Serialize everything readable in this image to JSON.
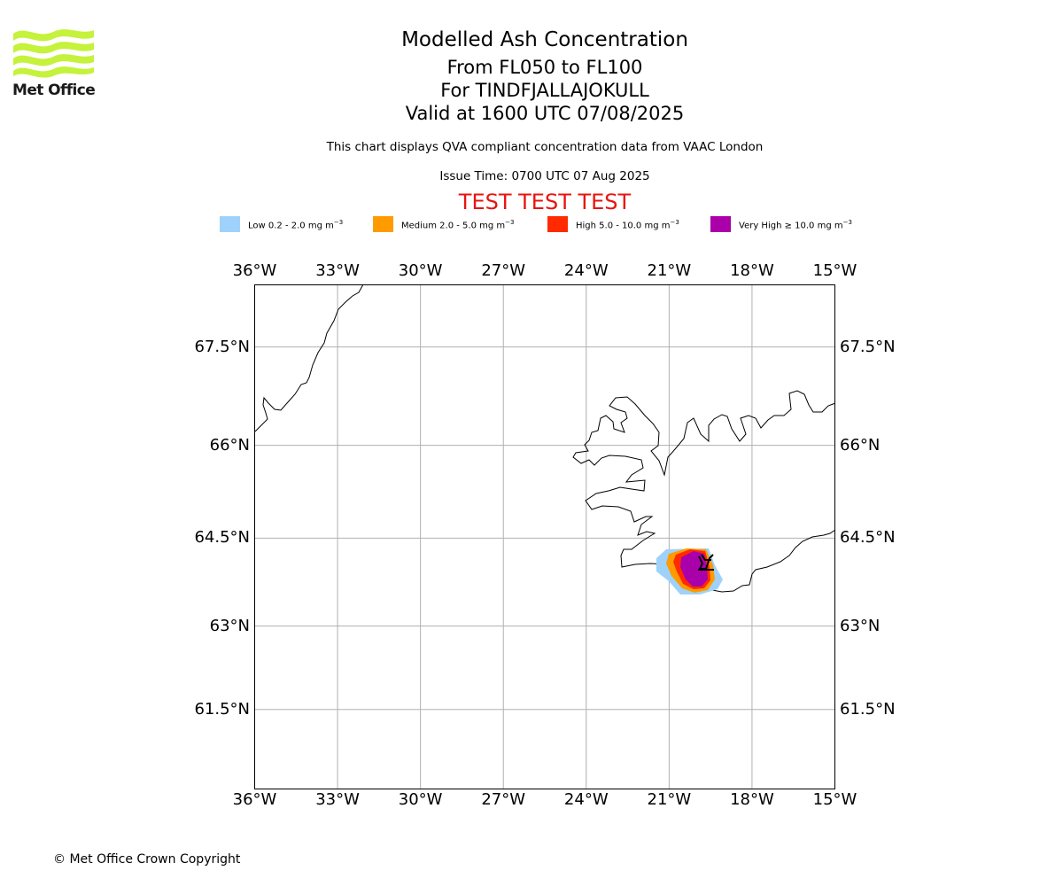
{
  "header": {
    "logo_text": "Met Office",
    "title": "Modelled Ash Concentration",
    "flight_levels": "From FL050 to FL100",
    "volcano": "For TINDFJALLAJOKULL",
    "valid_time": "Valid at 1600 UTC 07/08/2025",
    "note": "This chart displays QVA compliant concentration data from VAAC London",
    "issue_time": "Issue Time: 0700 UTC 07 Aug 2025",
    "test_banner": "TEST TEST TEST"
  },
  "legend": [
    {
      "label": "Low 0.2 - 2.0 mg m",
      "color": "#9fd2fa"
    },
    {
      "label": "Medium 2.0 - 5.0 mg m",
      "color": "#ff9a00"
    },
    {
      "label": "High 5.0 - 10.0 mg m",
      "color": "#ff2a00"
    },
    {
      "label": "Very High ≥ 10.0 mg m",
      "color": "#aa00aa"
    }
  ],
  "legend_unit_exponent": "−3",
  "map": {
    "lon_range": [
      -36,
      -15
    ],
    "lat_range": [
      60.0,
      68.4
    ],
    "lon_ticks": [
      "36°W",
      "33°W",
      "30°W",
      "27°W",
      "24°W",
      "21°W",
      "18°W",
      "15°W"
    ],
    "lat_ticks": [
      "67.5°N",
      "66°N",
      "64.5°N",
      "63°N",
      "61.5°N"
    ],
    "grid": true,
    "volcano_location": {
      "lon": -19.6,
      "lat": 63.8
    }
  },
  "footer": {
    "copyright": "© Met Office Crown Copyright"
  }
}
